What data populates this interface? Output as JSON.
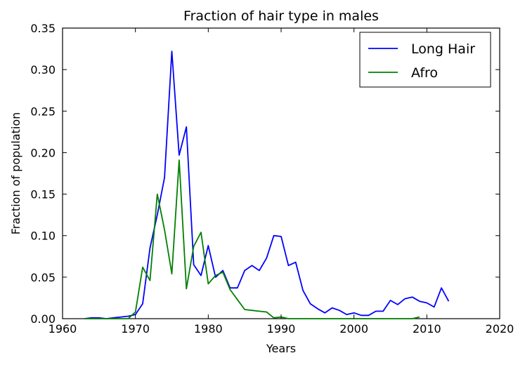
{
  "chart_data": {
    "type": "line",
    "title": "Fraction of hair type in males",
    "xlabel": "Years",
    "ylabel": "Fraction of population",
    "xlim": [
      1960,
      2020
    ],
    "ylim": [
      0,
      0.35
    ],
    "x_ticks": [
      1960,
      1970,
      1980,
      1990,
      2000,
      2010,
      2020
    ],
    "x_tick_labels": [
      "1960",
      "1970",
      "1980",
      "1990",
      "2000",
      "2010",
      "2020"
    ],
    "y_ticks": [
      0,
      0.05,
      0.1,
      0.15,
      0.2,
      0.25,
      0.3,
      0.35
    ],
    "y_tick_labels": [
      "0.00",
      "0.05",
      "0.10",
      "0.15",
      "0.20",
      "0.25",
      "0.30",
      "0.35"
    ],
    "grid": false,
    "legend_position": "top-right",
    "series": [
      {
        "name": "Long Hair",
        "color": "#0000ff",
        "x": [
          1963,
          1964,
          1965,
          1966,
          1967,
          1968,
          1969,
          1970,
          1971,
          1972,
          1973,
          1974,
          1975,
          1976,
          1977,
          1978,
          1979,
          1980,
          1981,
          1982,
          1983,
          1984,
          1985,
          1986,
          1987,
          1988,
          1989,
          1990,
          1991,
          1992,
          1993,
          1994,
          1995,
          1996,
          1997,
          1998,
          1999,
          2000,
          2001,
          2002,
          2003,
          2004,
          2005,
          2006,
          2007,
          2008,
          2009,
          2010,
          2011,
          2012,
          2013
        ],
        "values": [
          0,
          0.001,
          0.001,
          0,
          0.001,
          0.002,
          0.003,
          0.005,
          0.018,
          0.085,
          0.125,
          0.17,
          0.322,
          0.197,
          0.231,
          0.065,
          0.052,
          0.088,
          0.05,
          0.058,
          0.037,
          0.037,
          0.058,
          0.064,
          0.058,
          0.073,
          0.1,
          0.099,
          0.064,
          0.068,
          0.034,
          0.018,
          0.012,
          0.007,
          0.013,
          0.01,
          0.005,
          0.007,
          0.004,
          0.004,
          0.009,
          0.009,
          0.022,
          0.017,
          0.024,
          0.026,
          0.021,
          0.019,
          0.014,
          0.037,
          0.021
        ]
      },
      {
        "name": "Afro",
        "color": "#008000",
        "x": [
          1963,
          1964,
          1965,
          1966,
          1967,
          1968,
          1969,
          1970,
          1971,
          1972,
          1973,
          1974,
          1975,
          1976,
          1977,
          1978,
          1979,
          1980,
          1981,
          1982,
          1983,
          1984,
          1985,
          1986,
          1987,
          1988,
          1989,
          1990,
          1991,
          1992,
          1993,
          1994,
          1995,
          1996,
          1997,
          1998,
          1999,
          2000,
          2001,
          2002,
          2003,
          2004,
          2005,
          2006,
          2007,
          2008,
          2009
        ],
        "values": [
          0,
          0,
          0,
          0,
          0,
          0,
          0,
          0.008,
          0.062,
          0.046,
          0.15,
          0.107,
          0.054,
          0.191,
          0.036,
          0.087,
          0.104,
          0.042,
          0.052,
          0.056,
          0.035,
          0.023,
          0.011,
          0.01,
          0.009,
          0.008,
          0.001,
          0.002,
          0,
          0,
          0,
          0,
          0,
          0,
          0,
          0,
          0,
          0,
          0,
          0,
          0,
          0,
          0,
          0,
          0,
          0,
          0.002
        ]
      }
    ]
  }
}
